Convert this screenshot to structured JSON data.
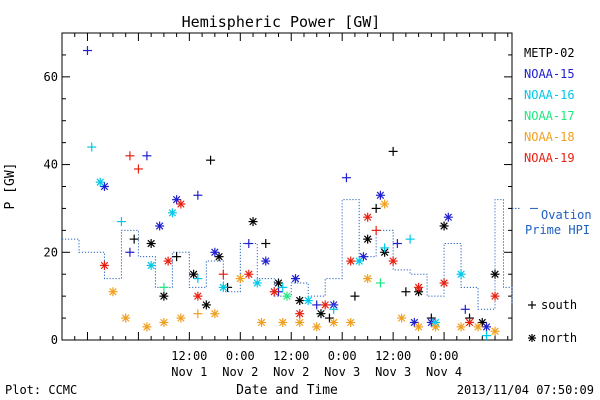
{
  "chart_data": {
    "type": "scatter",
    "title": "Hemispheric Power [GW]",
    "xlabel": "Date and Time",
    "ylabel": "P [GW]",
    "ylim": [
      0,
      70
    ],
    "yticks": [
      "0",
      "20",
      "40",
      "60"
    ],
    "xlim": [
      "2013-10-31 06:00",
      "2013-11-04 16:00"
    ],
    "xticks": [
      {
        "time": "2013-11-01 12:00",
        "line1": "12:00",
        "line2": "Nov 1"
      },
      {
        "time": "2013-11-02 00:00",
        "line1": "0:00",
        "line2": "Nov 2"
      },
      {
        "time": "2013-11-02 12:00",
        "line1": "12:00",
        "line2": "Nov 2"
      },
      {
        "time": "2013-11-03 00:00",
        "line1": "0:00",
        "line2": "Nov 3"
      },
      {
        "time": "2013-11-03 12:00",
        "line1": "12:00",
        "line2": "Nov 3"
      },
      {
        "time": "2013-11-04 00:00",
        "line1": "0:00",
        "line2": "Nov 4"
      }
    ],
    "grid": false,
    "legend_position": "right",
    "marker_legend": [
      {
        "symbol": "+",
        "label": "south"
      },
      {
        "symbol": "*",
        "label": "north"
      }
    ],
    "series": [
      {
        "name": "METP-02",
        "color": "#000000",
        "points": [
          [
            "2013-10-31 23:00",
            23,
            "+"
          ],
          [
            "2013-11-01 03:00",
            22,
            "*"
          ],
          [
            "2013-11-01 06:00",
            10,
            "*"
          ],
          [
            "2013-11-01 09:00",
            19,
            "+"
          ],
          [
            "2013-11-01 13:00",
            15,
            "*"
          ],
          [
            "2013-11-01 16:00",
            8,
            "*"
          ],
          [
            "2013-11-01 17:00",
            41,
            "+"
          ],
          [
            "2013-11-01 19:00",
            19,
            "*"
          ],
          [
            "2013-11-01 21:00",
            12,
            "+"
          ],
          [
            "2013-11-02 03:00",
            27,
            "*"
          ],
          [
            "2013-11-02 06:00",
            22,
            "+"
          ],
          [
            "2013-11-02 09:00",
            13,
            "*"
          ],
          [
            "2013-11-02 14:00",
            9,
            "*"
          ],
          [
            "2013-11-02 19:00",
            6,
            "*"
          ],
          [
            "2013-11-02 21:00",
            5,
            "+"
          ],
          [
            "2013-11-03 03:00",
            10,
            "+"
          ],
          [
            "2013-11-03 06:00",
            23,
            "*"
          ],
          [
            "2013-11-03 08:00",
            30,
            "+"
          ],
          [
            "2013-11-03 10:00",
            20,
            "*"
          ],
          [
            "2013-11-03 12:00",
            43,
            "+"
          ],
          [
            "2013-11-03 15:00",
            11,
            "+"
          ],
          [
            "2013-11-03 18:00",
            11,
            "*"
          ],
          [
            "2013-11-03 21:00",
            5,
            "+"
          ],
          [
            "2013-11-04 00:00",
            26,
            "*"
          ],
          [
            "2013-11-04 06:00",
            5,
            "+"
          ],
          [
            "2013-11-04 09:00",
            4,
            "*"
          ],
          [
            "2013-11-04 12:00",
            15,
            "*"
          ]
        ]
      },
      {
        "name": "NOAA-15",
        "color": "#2020d0",
        "points": [
          [
            "2013-10-31 12:00",
            66,
            "+"
          ],
          [
            "2013-10-31 16:00",
            35,
            "*"
          ],
          [
            "2013-10-31 22:00",
            20,
            "+"
          ],
          [
            "2013-11-01 02:00",
            42,
            "+"
          ],
          [
            "2013-11-01 05:00",
            26,
            "*"
          ],
          [
            "2013-11-01 09:00",
            32,
            "*"
          ],
          [
            "2013-11-01 14:00",
            33,
            "+"
          ],
          [
            "2013-11-01 18:00",
            20,
            "*"
          ],
          [
            "2013-11-02 02:00",
            22,
            "+"
          ],
          [
            "2013-11-02 06:00",
            18,
            "*"
          ],
          [
            "2013-11-02 09:00",
            11,
            "+"
          ],
          [
            "2013-11-02 13:00",
            14,
            "*"
          ],
          [
            "2013-11-02 18:00",
            8,
            "+"
          ],
          [
            "2013-11-02 22:00",
            8,
            "*"
          ],
          [
            "2013-11-03 01:00",
            37,
            "+"
          ],
          [
            "2013-11-03 05:00",
            19,
            "*"
          ],
          [
            "2013-11-03 09:00",
            33,
            "*"
          ],
          [
            "2013-11-03 13:00",
            22,
            "+"
          ],
          [
            "2013-11-03 17:00",
            4,
            "*"
          ],
          [
            "2013-11-03 21:00",
            4,
            "*"
          ],
          [
            "2013-11-04 01:00",
            28,
            "*"
          ],
          [
            "2013-11-04 05:00",
            7,
            "+"
          ],
          [
            "2013-11-04 10:00",
            3,
            "*"
          ]
        ]
      },
      {
        "name": "NOAA-16",
        "color": "#00c8e8",
        "points": [
          [
            "2013-10-31 13:00",
            44,
            "+"
          ],
          [
            "2013-10-31 15:00",
            36,
            "*"
          ],
          [
            "2013-10-31 20:00",
            27,
            "+"
          ],
          [
            "2013-11-01 03:00",
            17,
            "*"
          ],
          [
            "2013-11-01 08:00",
            29,
            "*"
          ],
          [
            "2013-11-01 14:00",
            14,
            "+"
          ],
          [
            "2013-11-01 20:00",
            12,
            "*"
          ],
          [
            "2013-11-02 04:00",
            13,
            "*"
          ],
          [
            "2013-11-02 10:00",
            12,
            "+"
          ],
          [
            "2013-11-02 16:00",
            9,
            "*"
          ],
          [
            "2013-11-02 22:00",
            7,
            "+"
          ],
          [
            "2013-11-03 04:00",
            18,
            "*"
          ],
          [
            "2013-11-03 10:00",
            21,
            "+"
          ],
          [
            "2013-11-03 16:00",
            23,
            "+"
          ],
          [
            "2013-11-03 22:00",
            4,
            "*"
          ],
          [
            "2013-11-04 04:00",
            15,
            "*"
          ],
          [
            "2013-11-04 10:00",
            1,
            "+"
          ]
        ]
      },
      {
        "name": "NOAA-17",
        "color": "#20e880",
        "points": [
          [
            "2013-11-01 06:00",
            12,
            "+"
          ],
          [
            "2013-11-02 11:00",
            10,
            "*"
          ],
          [
            "2013-11-03 09:00",
            13,
            "+"
          ]
        ]
      },
      {
        "name": "NOAA-18",
        "color": "#f0a020",
        "points": [
          [
            "2013-10-31 18:00",
            11,
            "*"
          ],
          [
            "2013-10-31 21:00",
            5,
            "*"
          ],
          [
            "2013-11-01 02:00",
            3,
            "*"
          ],
          [
            "2013-11-01 06:00",
            4,
            "*"
          ],
          [
            "2013-11-01 10:00",
            5,
            "*"
          ],
          [
            "2013-11-01 14:00",
            6,
            "+"
          ],
          [
            "2013-11-01 18:00",
            6,
            "*"
          ],
          [
            "2013-11-02 00:00",
            14,
            "*"
          ],
          [
            "2013-11-02 05:00",
            4,
            "*"
          ],
          [
            "2013-11-02 10:00",
            4,
            "*"
          ],
          [
            "2013-11-02 14:00",
            4,
            "*"
          ],
          [
            "2013-11-02 18:00",
            3,
            "*"
          ],
          [
            "2013-11-02 22:00",
            4,
            "*"
          ],
          [
            "2013-11-03 02:00",
            4,
            "*"
          ],
          [
            "2013-11-03 06:00",
            14,
            "*"
          ],
          [
            "2013-11-03 10:00",
            31,
            "*"
          ],
          [
            "2013-11-03 14:00",
            5,
            "*"
          ],
          [
            "2013-11-03 18:00",
            3,
            "*"
          ],
          [
            "2013-11-03 22:00",
            3,
            "*"
          ],
          [
            "2013-11-04 04:00",
            3,
            "*"
          ],
          [
            "2013-11-04 08:00",
            3,
            "*"
          ],
          [
            "2013-11-04 12:00",
            2,
            "*"
          ]
        ]
      },
      {
        "name": "NOAA-19",
        "color": "#e82010",
        "points": [
          [
            "2013-10-31 16:00",
            17,
            "*"
          ],
          [
            "2013-10-31 22:00",
            42,
            "+"
          ],
          [
            "2013-11-01 00:00",
            39,
            "+"
          ],
          [
            "2013-11-01 07:00",
            18,
            "*"
          ],
          [
            "2013-11-01 10:00",
            31,
            "*"
          ],
          [
            "2013-11-01 14:00",
            10,
            "*"
          ],
          [
            "2013-11-01 20:00",
            15,
            "+"
          ],
          [
            "2013-11-02 02:00",
            15,
            "*"
          ],
          [
            "2013-11-02 08:00",
            11,
            "*"
          ],
          [
            "2013-11-02 14:00",
            6,
            "*"
          ],
          [
            "2013-11-02 20:00",
            8,
            "*"
          ],
          [
            "2013-11-03 02:00",
            18,
            "*"
          ],
          [
            "2013-11-03 06:00",
            28,
            "*"
          ],
          [
            "2013-11-03 08:00",
            25,
            "+"
          ],
          [
            "2013-11-03 12:00",
            18,
            "*"
          ],
          [
            "2013-11-03 18:00",
            12,
            "*"
          ],
          [
            "2013-11-04 00:00",
            13,
            "*"
          ],
          [
            "2013-11-04 06:00",
            4,
            "*"
          ],
          [
            "2013-11-04 12:00",
            10,
            "*"
          ]
        ]
      }
    ],
    "ovation": {
      "name": "Ovation Prime HPI",
      "legend_lines": [
        "Ovation",
        "Prime HPI"
      ],
      "color": "#2060c0",
      "right_value": 30,
      "steps": [
        [
          "2013-10-31 06:00",
          23
        ],
        [
          "2013-10-31 10:00",
          20
        ],
        [
          "2013-10-31 16:00",
          14
        ],
        [
          "2013-10-31 20:00",
          25
        ],
        [
          "2013-11-01 00:00",
          19
        ],
        [
          "2013-11-01 04:00",
          12
        ],
        [
          "2013-11-01 08:00",
          20
        ],
        [
          "2013-11-01 12:00",
          12
        ],
        [
          "2013-11-01 16:00",
          18
        ],
        [
          "2013-11-01 20:00",
          11
        ],
        [
          "2013-11-02 00:00",
          22
        ],
        [
          "2013-11-02 04:00",
          14
        ],
        [
          "2013-11-02 08:00",
          10
        ],
        [
          "2013-11-02 12:00",
          13
        ],
        [
          "2013-11-02 16:00",
          10
        ],
        [
          "2013-11-02 20:00",
          14
        ],
        [
          "2013-11-03 00:00",
          32
        ],
        [
          "2013-11-03 04:00",
          19
        ],
        [
          "2013-11-03 08:00",
          25
        ],
        [
          "2013-11-03 12:00",
          16
        ],
        [
          "2013-11-03 16:00",
          15
        ],
        [
          "2013-11-03 20:00",
          10
        ],
        [
          "2013-11-04 00:00",
          22
        ],
        [
          "2013-11-04 04:00",
          12
        ],
        [
          "2013-11-04 08:00",
          7
        ],
        [
          "2013-11-04 12:00",
          32
        ],
        [
          "2013-11-04 14:00",
          12
        ],
        [
          "2013-11-04 16:00",
          8
        ]
      ]
    }
  },
  "footer": {
    "left": "Plot: CCMC",
    "right": "2013/11/04 07:50:09"
  }
}
